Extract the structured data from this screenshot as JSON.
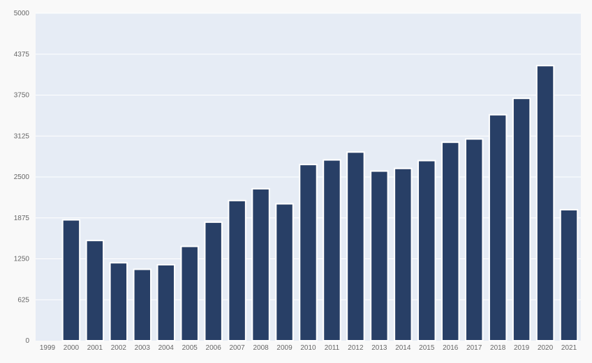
{
  "chart_data": {
    "type": "bar",
    "title": "",
    "xlabel": "",
    "ylabel": "",
    "categories": [
      "1999",
      "2000",
      "2001",
      "2002",
      "2003",
      "2004",
      "2005",
      "2006",
      "2007",
      "2008",
      "2009",
      "2010",
      "2011",
      "2012",
      "2013",
      "2014",
      "2015",
      "2016",
      "2017",
      "2018",
      "2019",
      "2020",
      "2021"
    ],
    "values": [
      0,
      1845,
      1530,
      1190,
      1090,
      1160,
      1440,
      1810,
      2140,
      2320,
      2090,
      2690,
      2760,
      2880,
      2590,
      2630,
      2750,
      3030,
      3080,
      3450,
      3700,
      4200,
      2000
    ],
    "ylim": [
      0,
      5000
    ],
    "yticks": [
      0,
      625,
      1250,
      1875,
      2500,
      3125,
      3750,
      4375,
      5000
    ],
    "ytick_labels": [
      "0",
      "625",
      "1250",
      "1875",
      "2500",
      "3125",
      "3750",
      "4375",
      "5000"
    ],
    "grid": true,
    "legend": "none",
    "colors": {
      "bar": "#283f66",
      "bar_outline": "#ffffff",
      "plot_background": "#e6ecf5",
      "gridline": "#ffffff",
      "label": "#666666"
    }
  }
}
